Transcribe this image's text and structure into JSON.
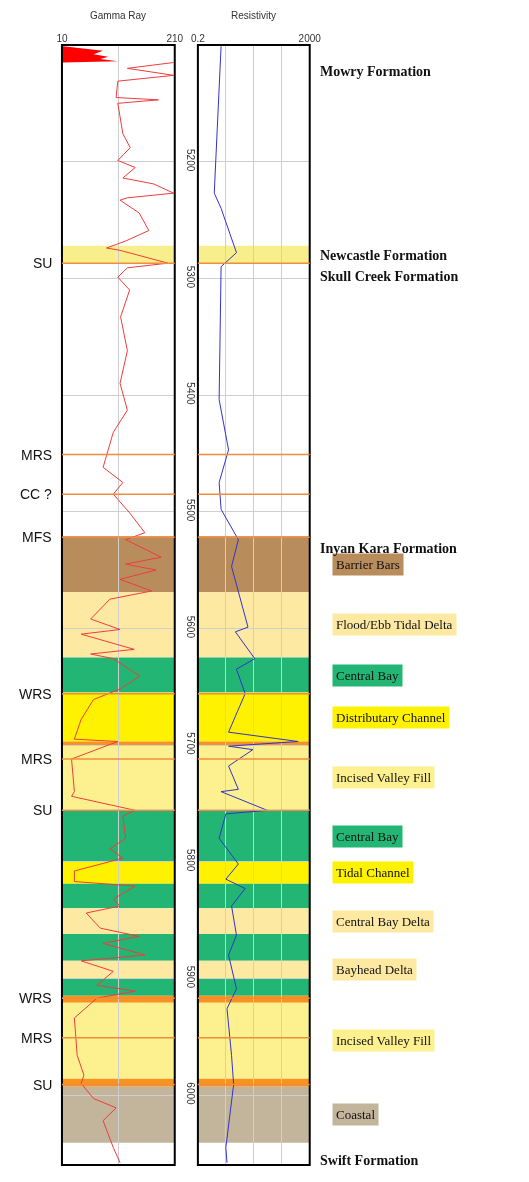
{
  "chart_data": [
    {
      "type": "line",
      "title": "Gamma Ray",
      "orientation": "horizontal",
      "xlim": [
        10,
        210
      ],
      "xticks": [
        10,
        {
          "value": 110,
          "label": null
        },
        210
      ],
      "ylim": [
        6060,
        5100
      ],
      "yticks": [
        {
          "value": 5200,
          "label": null
        },
        {
          "value": 5300,
          "label": null
        },
        {
          "value": 5400,
          "label": null
        },
        {
          "value": 5500,
          "label": null
        },
        {
          "value": 5600,
          "label": null
        },
        {
          "value": 5700,
          "label": null
        },
        {
          "value": 5800,
          "label": null
        },
        {
          "value": 5900,
          "label": null
        },
        {
          "value": 6000,
          "label": null
        }
      ],
      "tick_labels": "x",
      "grid": true,
      "series": [
        {
          "type": "area",
          "color": "#ff0000",
          "x": [
            5101,
            5105,
            5108,
            5110,
            5112,
            5114,
            5115
          ],
          "values": [
            12,
            83,
            66,
            92,
            78,
            109,
            12
          ]
        },
        {
          "color": "#f03c3c",
          "x": [
            5115,
            5120,
            5126,
            5131,
            5145,
            5147,
            5150,
            5176,
            5188,
            5199,
            5205,
            5214,
            5219,
            5227,
            5231,
            5233,
            5244,
            5259,
            5268,
            5274,
            5276,
            5287,
            5291,
            5299,
            5310,
            5333,
            5362,
            5390,
            5413,
            5432,
            5462,
            5475,
            5485,
            5501,
            5518,
            5524,
            5539,
            5545,
            5550,
            5558,
            5568,
            5575,
            5592,
            5601,
            5605,
            5618,
            5622,
            5626,
            5641,
            5652,
            5661,
            5678,
            5695,
            5697,
            5712,
            5740,
            5744,
            5756,
            5761,
            5780,
            5789,
            5797,
            5808,
            5817,
            5821,
            5832,
            5838,
            5844,
            5857,
            5864,
            5870,
            5880,
            5885,
            5894,
            5906,
            5911,
            5917,
            5934,
            5966,
            5983,
            5990,
            6003,
            6011,
            6022,
            6045,
            6058
          ],
          "values": [
            208,
            126,
            208,
            109,
            106,
            181,
            109,
            118,
            131,
            109,
            140,
            118,
            172,
            208,
            126,
            113,
            147,
            164,
            123,
            89,
            113,
            198,
            126,
            109,
            130,
            114,
            126,
            113,
            126,
            101,
            83,
            118,
            101,
            130,
            157,
            123,
            186,
            123,
            177,
            113,
            169,
            95,
            61,
            113,
            44,
            138,
            61,
            101,
            148,
            113,
            66,
            44,
            32,
            109,
            27,
            32,
            27,
            140,
            118,
            123,
            95,
            118,
            32,
            32,
            140,
            101,
            113,
            53,
            78,
            147,
            83,
            157,
            44,
            101,
            72,
            140,
            72,
            32,
            37,
            49,
            44,
            66,
            106,
            83,
            101,
            113
          ]
        }
      ],
      "bands": [
        {
          "axis": "y",
          "from": 5272,
          "to": 5287,
          "color": "#f8ef8c",
          "label": null
        },
        {
          "axis": "y",
          "from": 5521,
          "to": 5569,
          "color": "#b98c5c",
          "label": null
        },
        {
          "axis": "y",
          "from": 5569,
          "to": 5625,
          "color": "#fde9a2",
          "label": null
        },
        {
          "axis": "y",
          "from": 5625,
          "to": 5655,
          "color": "#22b573",
          "label": null
        },
        {
          "axis": "y",
          "from": 5655,
          "to": 5697,
          "color": "#fff200",
          "label": null
        },
        {
          "axis": "y",
          "from": 5697,
          "to": 5700,
          "color": "#f7931e",
          "label": null
        },
        {
          "axis": "y",
          "from": 5700,
          "to": 5755,
          "color": "#fdf18f",
          "label": null
        },
        {
          "axis": "y",
          "from": 5756,
          "to": 5800,
          "color": "#22b573",
          "label": null
        },
        {
          "axis": "y",
          "from": 5800,
          "to": 5819,
          "color": "#fff200",
          "label": null
        },
        {
          "axis": "y",
          "from": 5819,
          "to": 5840,
          "color": "#22b573",
          "label": null
        },
        {
          "axis": "y",
          "from": 5840,
          "to": 5862,
          "color": "#fde9a2",
          "label": null
        },
        {
          "axis": "y",
          "from": 5862,
          "to": 5885,
          "color": "#22b573",
          "label": null
        },
        {
          "axis": "y",
          "from": 5885,
          "to": 5900,
          "color": "#fde9a2",
          "label": null
        },
        {
          "axis": "y",
          "from": 5900,
          "to": 5915,
          "color": "#22b573",
          "label": null
        },
        {
          "axis": "y",
          "from": 5915,
          "to": 5921,
          "color": "#f7931e",
          "label": null
        },
        {
          "axis": "y",
          "from": 5921,
          "to": 5986,
          "color": "#fdf18f",
          "label": null
        },
        {
          "axis": "y",
          "from": 5986,
          "to": 5993,
          "color": "#f7931e",
          "label": null
        },
        {
          "axis": "y",
          "from": 5993,
          "to": 6041,
          "color": "#c2b59b",
          "label": null
        }
      ],
      "ref_lines": [
        {
          "axis": "y",
          "value": 5287,
          "label": "SU",
          "color": "#f08c3c"
        },
        {
          "axis": "y",
          "value": 5451,
          "label": "MRS",
          "color": "#f08c3c"
        },
        {
          "axis": "y",
          "value": 5485,
          "label": "CC ?",
          "color": "#f08c3c"
        },
        {
          "axis": "y",
          "value": 5522,
          "label": "MFS",
          "color": "#f08c3c"
        },
        {
          "axis": "y",
          "value": 5656,
          "label": "WRS",
          "color": "#f08c3c"
        },
        {
          "axis": "y",
          "value": 5712,
          "label": "MRS",
          "color": "#f08c3c"
        },
        {
          "axis": "y",
          "value": 5756,
          "label": "SU",
          "color": "#f08c3c"
        },
        {
          "axis": "y",
          "value": 5917,
          "label": "WRS",
          "color": "#f08c3c"
        },
        {
          "axis": "y",
          "value": 5951,
          "label": "MRS",
          "color": "#f08c3c"
        },
        {
          "axis": "y",
          "value": 5991,
          "label": "SU",
          "color": "#f08c3c"
        }
      ]
    },
    {
      "type": "line",
      "title": "Resistivity",
      "orientation": "horizontal",
      "log": "x",
      "xlim": [
        0.2,
        2000
      ],
      "xticks": [
        0.2,
        {
          "value": 2,
          "label": null
        },
        {
          "value": 20,
          "label": null
        },
        {
          "value": 200,
          "label": null
        },
        2000
      ],
      "ylim": [
        6060,
        5100
      ],
      "yticks": [
        5200,
        5300,
        5400,
        5500,
        5600,
        5700,
        5800,
        5900,
        6000
      ],
      "grid": true,
      "series": [
        {
          "color": "#3333cc",
          "x": [
            5101,
            5227,
            5240,
            5278,
            5290,
            5404,
            5447,
            5475,
            5498,
            5524,
            5547,
            5599,
            5603,
            5626,
            5635,
            5656,
            5689,
            5697,
            5701,
            5704,
            5718,
            5738,
            5740,
            5756,
            5759,
            5780,
            5802,
            5815,
            5823,
            5838,
            5863,
            5880,
            5909,
            5926,
            5966,
            5991,
            6045,
            6058
          ],
          "values": [
            1.35,
            0.77,
            1.35,
            4.8,
            1.35,
            1.15,
            2.5,
            1.15,
            1.35,
            5.6,
            3.2,
            12.4,
            4.4,
            21.6,
            4.8,
            9.8,
            2.5,
            771,
            2.5,
            18.5,
            2.5,
            5.6,
            1.35,
            60.6,
            2.0,
            1.15,
            5.6,
            2.0,
            9.8,
            3.2,
            4.8,
            2.5,
            4.8,
            2.2,
            3.2,
            3.8,
            2.0,
            2.2
          ]
        }
      ],
      "bands": [
        {
          "axis": "y",
          "from": 5272,
          "to": 5287,
          "color": "#f8ef8c",
          "label": null
        },
        {
          "axis": "y",
          "from": 5521,
          "to": 5569,
          "color": "#b98c5c",
          "label": "Barrier Bars"
        },
        {
          "axis": "y",
          "from": 5569,
          "to": 5625,
          "color": "#fde9a2",
          "label": "Flood/Ebb Tidal Delta"
        },
        {
          "axis": "y",
          "from": 5625,
          "to": 5655,
          "color": "#22b573",
          "label": "Central Bay"
        },
        {
          "axis": "y",
          "from": 5655,
          "to": 5697,
          "color": "#fff200",
          "label": "Distributary Channel"
        },
        {
          "axis": "y",
          "from": 5697,
          "to": 5700,
          "color": "#f7931e",
          "label": null
        },
        {
          "axis": "y",
          "from": 5700,
          "to": 5755,
          "color": "#fdf18f",
          "label": "Incised Valley Fill"
        },
        {
          "axis": "y",
          "from": 5756,
          "to": 5800,
          "color": "#22b573",
          "label": "Central Bay"
        },
        {
          "axis": "y",
          "from": 5800,
          "to": 5819,
          "color": "#fff200",
          "label": "Tidal Channel"
        },
        {
          "axis": "y",
          "from": 5819,
          "to": 5840,
          "color": "#22b573",
          "label": null
        },
        {
          "axis": "y",
          "from": 5840,
          "to": 5862,
          "color": "#fde9a2",
          "label": "Central Bay Delta"
        },
        {
          "axis": "y",
          "from": 5862,
          "to": 5885,
          "color": "#22b573",
          "label": null
        },
        {
          "axis": "y",
          "from": 5885,
          "to": 5900,
          "color": "#fde9a2",
          "label": "Bayhead Delta"
        },
        {
          "axis": "y",
          "from": 5900,
          "to": 5915,
          "color": "#22b573",
          "label": null
        },
        {
          "axis": "y",
          "from": 5915,
          "to": 5921,
          "color": "#f7931e",
          "label": null
        },
        {
          "axis": "y",
          "from": 5921,
          "to": 5986,
          "color": "#fdf18f",
          "label": "Incised Valley Fill"
        },
        {
          "axis": "y",
          "from": 5986,
          "to": 5993,
          "color": "#f7931e",
          "label": null
        },
        {
          "axis": "y",
          "from": 5993,
          "to": 6041,
          "color": "#c2b59b",
          "label": "Coastal"
        }
      ],
      "ref_lines": [
        {
          "axis": "y",
          "value": 5287,
          "label": null,
          "color": "#f08c3c"
        },
        {
          "axis": "y",
          "value": 5451,
          "label": null,
          "color": "#f08c3c"
        },
        {
          "axis": "y",
          "value": 5485,
          "label": null,
          "color": "#f08c3c"
        },
        {
          "axis": "y",
          "value": 5522,
          "label": null,
          "color": "#f08c3c"
        },
        {
          "axis": "y",
          "value": 5656,
          "label": null,
          "color": "#f08c3c"
        },
        {
          "axis": "y",
          "value": 5712,
          "label": null,
          "color": "#f08c3c"
        },
        {
          "axis": "y",
          "value": 5756,
          "label": null,
          "color": "#f08c3c"
        },
        {
          "axis": "y",
          "value": 5917,
          "label": null,
          "color": "#f08c3c"
        },
        {
          "axis": "y",
          "value": 5951,
          "label": null,
          "color": "#f08c3c"
        },
        {
          "axis": "y",
          "value": 5991,
          "label": null,
          "color": "#f08c3c"
        }
      ],
      "annotations": [
        "Mowry Formation",
        "Newcastle Formation",
        "Skull Creek Formation",
        "Inyan Kara Formation",
        "Swift Formation"
      ]
    }
  ]
}
